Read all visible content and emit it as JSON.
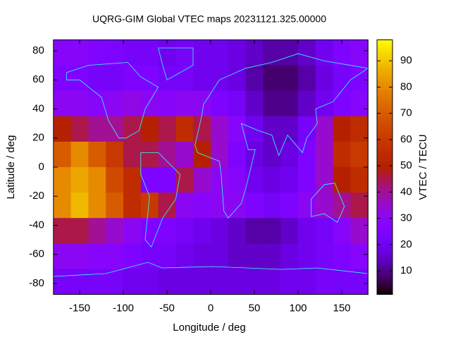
{
  "chart_data": {
    "type": "heatmap",
    "title": "UQRG-GIM Global VTEC maps 20231121.325.00000",
    "x_label": "Longitude / deg",
    "y_label": "Latitude / deg",
    "colorbar_label": "VTEC / TECU",
    "x": [
      -170,
      -150,
      -130,
      -110,
      -90,
      -70,
      -50,
      -30,
      -10,
      10,
      30,
      50,
      70,
      90,
      110,
      130,
      150,
      170
    ],
    "y": [
      78.75,
      61.25,
      43.75,
      26.25,
      8.75,
      -8.75,
      -26.25,
      -43.75,
      -61.25,
      -78.75
    ],
    "z": [
      [
        28,
        28,
        26,
        25,
        22,
        22,
        20,
        22,
        20,
        20,
        18,
        15,
        12,
        12,
        15,
        20,
        25,
        28
      ],
      [
        25,
        25,
        22,
        22,
        25,
        25,
        22,
        22,
        20,
        20,
        18,
        12,
        8,
        8,
        12,
        18,
        22,
        25
      ],
      [
        30,
        30,
        28,
        30,
        32,
        30,
        28,
        30,
        30,
        25,
        22,
        15,
        10,
        10,
        15,
        20,
        25,
        28
      ],
      [
        50,
        45,
        40,
        40,
        45,
        50,
        45,
        55,
        45,
        35,
        28,
        20,
        15,
        15,
        22,
        35,
        50,
        55
      ],
      [
        70,
        80,
        70,
        60,
        45,
        45,
        40,
        35,
        50,
        35,
        25,
        18,
        15,
        18,
        25,
        35,
        55,
        60
      ],
      [
        80,
        85,
        80,
        65,
        55,
        25,
        25,
        45,
        35,
        30,
        28,
        20,
        18,
        20,
        25,
        35,
        50,
        55
      ],
      [
        80,
        88,
        80,
        70,
        55,
        60,
        45,
        30,
        28,
        30,
        30,
        25,
        22,
        25,
        30,
        35,
        40,
        45
      ],
      [
        45,
        45,
        40,
        35,
        30,
        25,
        25,
        22,
        20,
        18,
        15,
        12,
        12,
        15,
        20,
        22,
        28,
        35
      ],
      [
        30,
        30,
        28,
        28,
        25,
        22,
        22,
        20,
        18,
        18,
        15,
        15,
        15,
        18,
        20,
        22,
        25,
        28
      ],
      [
        22,
        22,
        22,
        22,
        20,
        20,
        18,
        18,
        18,
        18,
        18,
        18,
        18,
        20,
        20,
        22,
        22,
        22
      ]
    ],
    "xlim": [
      -180,
      180
    ],
    "ylim": [
      -87.5,
      87.5
    ],
    "zlim": [
      1,
      98
    ],
    "xticks": [
      -150,
      -100,
      -50,
      0,
      50,
      100,
      150
    ],
    "yticks": [
      -80,
      -60,
      -40,
      -20,
      0,
      20,
      40,
      60,
      80
    ],
    "zticks": [
      10,
      20,
      30,
      40,
      50,
      60,
      70,
      80,
      90
    ]
  }
}
